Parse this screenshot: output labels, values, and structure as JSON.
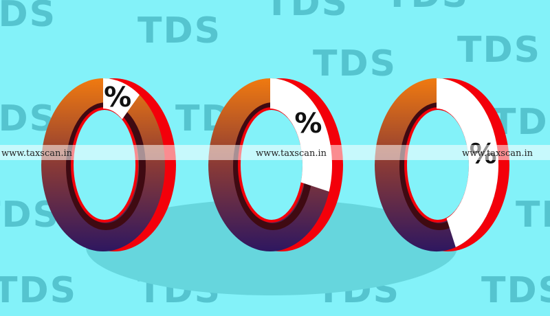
{
  "background": {
    "word": "TDS",
    "bg_color": "#83f2f9",
    "word_color": "#55c4cf",
    "shadow_color": "#66d6dd"
  },
  "watermark": {
    "text": "www.taxscan.in"
  },
  "donuts": [
    {
      "label": "%",
      "fill_fraction": 0.1
    },
    {
      "label": "%",
      "fill_fraction": 0.3
    },
    {
      "label": "%",
      "fill_fraction": 0.45
    }
  ],
  "colors": {
    "gradient_top": "#f07a10",
    "gradient_mid": "#8a3a36",
    "gradient_bottom": "#2e1760",
    "rim_red": "#f3000a",
    "inner_dark": "#3f0a12",
    "highlight": "#ffffff"
  }
}
